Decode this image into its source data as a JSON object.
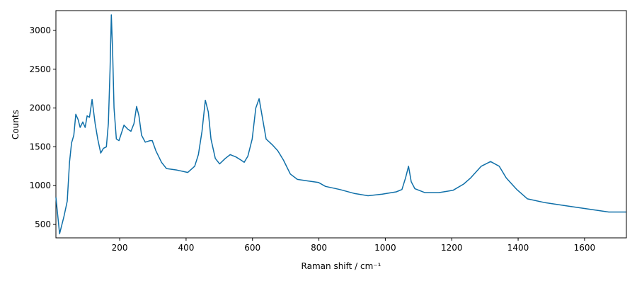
{
  "chart_data": {
    "type": "line",
    "xlabel": "Raman shift / cm⁻¹",
    "ylabel": "Counts",
    "x": [
      8,
      19,
      32,
      42,
      49,
      55,
      62,
      68,
      75,
      81,
      89,
      96,
      102,
      109,
      117,
      126,
      134,
      143,
      151,
      160,
      166,
      171,
      175,
      179,
      183,
      190,
      198,
      207,
      213,
      224,
      234,
      243,
      251,
      258,
      266,
      277,
      292,
      298,
      309,
      326,
      341,
      373,
      405,
      426,
      437,
      448,
      458,
      467,
      475,
      488,
      501,
      518,
      533,
      550,
      565,
      575,
      586,
      599,
      610,
      620,
      629,
      641,
      661,
      676,
      693,
      714,
      735,
      767,
      799,
      820,
      863,
      906,
      948,
      991,
      1033,
      1050,
      1061,
      1070,
      1078,
      1089,
      1119,
      1161,
      1204,
      1236,
      1257,
      1289,
      1317,
      1343,
      1364,
      1396,
      1428,
      1481,
      1545,
      1609,
      1673,
      1725
    ],
    "series": [
      {
        "name": "Counts",
        "color": "#0f6fa8",
        "values": [
          850,
          380,
          600,
          800,
          1300,
          1550,
          1650,
          1920,
          1850,
          1750,
          1820,
          1750,
          1900,
          1880,
          2110,
          1800,
          1600,
          1420,
          1480,
          1500,
          1800,
          2500,
          3200,
          2700,
          2000,
          1600,
          1580,
          1700,
          1780,
          1730,
          1700,
          1800,
          2020,
          1900,
          1650,
          1560,
          1580,
          1580,
          1450,
          1300,
          1220,
          1200,
          1170,
          1250,
          1400,
          1700,
          2100,
          1950,
          1600,
          1350,
          1280,
          1350,
          1400,
          1370,
          1330,
          1300,
          1380,
          1600,
          2000,
          2120,
          1900,
          1600,
          1520,
          1450,
          1330,
          1150,
          1080,
          1060,
          1040,
          990,
          950,
          900,
          870,
          890,
          920,
          950,
          1100,
          1250,
          1050,
          960,
          910,
          910,
          940,
          1020,
          1100,
          1250,
          1310,
          1250,
          1100,
          950,
          830,
          780,
          740,
          700,
          660,
          660
        ]
      }
    ],
    "xlim": [
      8,
      1726
    ],
    "ylim": [
      327,
      3255
    ],
    "xticks": [
      200,
      400,
      600,
      800,
      1000,
      1200,
      1400,
      1600
    ],
    "yticks": [
      500,
      1000,
      1500,
      2000,
      2500,
      3000
    ]
  }
}
